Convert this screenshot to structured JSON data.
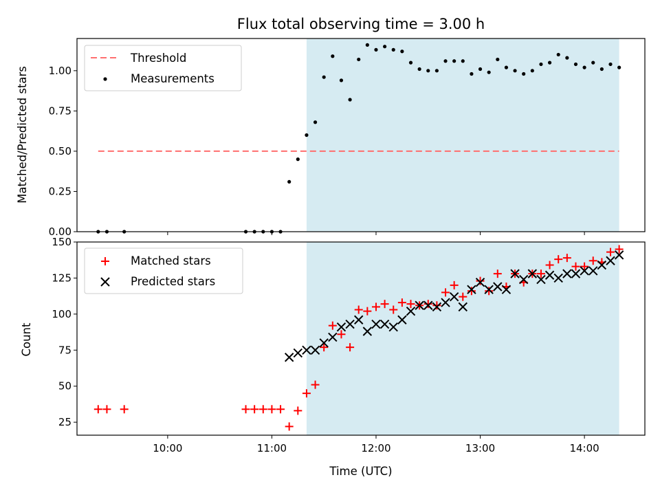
{
  "chart_data": [
    {
      "type": "scatter",
      "title": "Flux total observing time = 3.00 h",
      "xlabel": "",
      "ylabel": "Matched/Predicted stars",
      "ylim": [
        0,
        1.2
      ],
      "yticks": [
        "0.00",
        "0.25",
        "0.50",
        "0.75",
        "1.00"
      ],
      "xlim_hours": [
        9.13,
        14.58
      ],
      "legend_placement": "top-left",
      "observing_window": {
        "start": "11:20",
        "end": "14:20",
        "color": "#add8e6"
      },
      "threshold": {
        "name": "Threshold",
        "value": 0.5,
        "x_start": "09:20",
        "x_end": "14:20",
        "color": "#ff6e6e"
      },
      "measurements": {
        "name": "Measurements",
        "color": "#000000",
        "x": [
          "09:20",
          "09:25",
          "09:35",
          "10:45",
          "10:50",
          "10:55",
          "11:00",
          "11:05",
          "11:10",
          "11:15",
          "11:20",
          "11:25",
          "11:30",
          "11:35",
          "11:40",
          "11:45",
          "11:50",
          "11:55",
          "12:00",
          "12:05",
          "12:10",
          "12:15",
          "12:20",
          "12:25",
          "12:30",
          "12:35",
          "12:40",
          "12:45",
          "12:50",
          "12:55",
          "13:00",
          "13:05",
          "13:10",
          "13:15",
          "13:20",
          "13:25",
          "13:30",
          "13:35",
          "13:40",
          "13:45",
          "13:50",
          "13:55",
          "14:00",
          "14:05",
          "14:10",
          "14:15",
          "14:20"
        ],
        "y": [
          0,
          0,
          0,
          0,
          0,
          0,
          0,
          0,
          0.31,
          0.45,
          0.6,
          0.68,
          0.96,
          1.09,
          0.94,
          0.82,
          1.07,
          1.16,
          1.13,
          1.15,
          1.13,
          1.12,
          1.05,
          1.01,
          1.0,
          1.0,
          1.06,
          1.06,
          1.06,
          0.98,
          1.01,
          0.99,
          1.07,
          1.02,
          1.0,
          0.98,
          1.0,
          1.04,
          1.05,
          1.1,
          1.08,
          1.04,
          1.02,
          1.05,
          1.01,
          1.04,
          1.02
        ]
      }
    },
    {
      "type": "scatter",
      "title": "",
      "xlabel": "Time (UTC)",
      "ylabel": "Count",
      "ylim": [
        16,
        150
      ],
      "yticks": [
        "25",
        "50",
        "75",
        "100",
        "125",
        "150"
      ],
      "xticks": [
        "10:00",
        "11:00",
        "12:00",
        "13:00",
        "14:00"
      ],
      "xlim_hours": [
        9.13,
        14.58
      ],
      "legend_placement": "top-left",
      "observing_window": {
        "start": "11:20",
        "end": "14:20",
        "color": "#add8e6"
      },
      "series": [
        {
          "name": "Matched stars",
          "marker": "+",
          "color": "#ff0000",
          "x": [
            "09:20",
            "09:25",
            "09:35",
            "10:45",
            "10:50",
            "10:55",
            "11:00",
            "11:05",
            "11:10",
            "11:15",
            "11:20",
            "11:25",
            "11:30",
            "11:35",
            "11:40",
            "11:45",
            "11:50",
            "11:55",
            "12:00",
            "12:05",
            "12:10",
            "12:15",
            "12:20",
            "12:25",
            "12:30",
            "12:35",
            "12:40",
            "12:45",
            "12:50",
            "12:55",
            "13:00",
            "13:05",
            "13:10",
            "13:15",
            "13:20",
            "13:25",
            "13:30",
            "13:35",
            "13:40",
            "13:45",
            "13:50",
            "13:55",
            "14:00",
            "14:05",
            "14:10",
            "14:15",
            "14:20"
          ],
          "y": [
            34,
            34,
            34,
            34,
            34,
            34,
            34,
            34,
            22,
            33,
            45,
            51,
            77,
            92,
            86,
            77,
            103,
            102,
            105,
            107,
            103,
            108,
            107,
            106,
            107,
            106,
            115,
            120,
            112,
            116,
            123,
            116,
            128,
            119,
            128,
            122,
            128,
            128,
            134,
            138,
            139,
            133,
            133,
            137,
            136,
            143,
            145
          ]
        },
        {
          "name": "Predicted stars",
          "marker": "x",
          "color": "#000000",
          "x": [
            "11:10",
            "11:15",
            "11:20",
            "11:25",
            "11:30",
            "11:35",
            "11:40",
            "11:45",
            "11:50",
            "11:55",
            "12:00",
            "12:05",
            "12:10",
            "12:15",
            "12:20",
            "12:25",
            "12:30",
            "12:35",
            "12:40",
            "12:45",
            "12:50",
            "12:55",
            "13:00",
            "13:05",
            "13:10",
            "13:15",
            "13:20",
            "13:25",
            "13:30",
            "13:35",
            "13:40",
            "13:45",
            "13:50",
            "13:55",
            "14:00",
            "14:05",
            "14:10",
            "14:15",
            "14:20"
          ],
          "y": [
            70,
            73,
            75,
            75,
            80,
            84,
            91,
            93,
            96,
            88,
            93,
            93,
            91,
            96,
            102,
            106,
            106,
            105,
            108,
            112,
            105,
            117,
            122,
            117,
            119,
            117,
            128,
            124,
            128,
            124,
            127,
            125,
            128,
            128,
            130,
            130,
            134,
            137,
            141
          ]
        }
      ]
    }
  ]
}
